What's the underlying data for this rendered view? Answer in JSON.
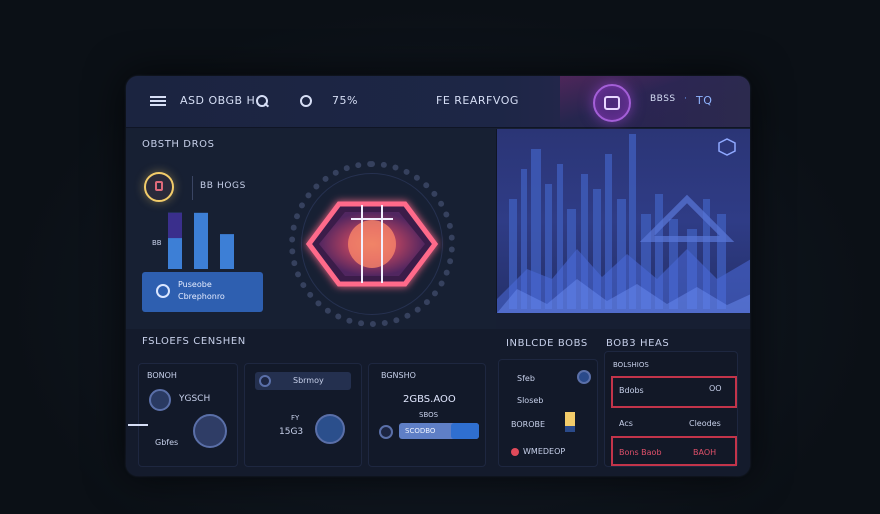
{
  "titlebar": {
    "left_text": "ASD OBGB H",
    "count_text": "75%",
    "center_title": "FE REARFVOG",
    "right_text": "BBSS",
    "right_link": "TQ"
  },
  "left_panel": {
    "heading": "OBSTH DROS",
    "stat_label": "BB HOGS",
    "axis_tick": "BB",
    "card_line1": "Puseobe",
    "card_line2": "Cbrephonro"
  },
  "chart_data": {
    "type": "bar",
    "categories": [
      "",
      "",
      ""
    ],
    "values": [
      58,
      58,
      36
    ],
    "title": "",
    "xlabel": "",
    "ylabel": ""
  },
  "lower_left": {
    "heading": "FSLOEFS CENSHEN",
    "card_title": "BONOH",
    "search_label": "YGSCH",
    "small_label": "Gbfes",
    "sort_label": "Sbrmoy",
    "tiny_label": "FY",
    "count_value": "15G3"
  },
  "lower_mid": {
    "card_title": "BGNSHO",
    "amount": "2GBS.AOO",
    "sub_label": "SBOS",
    "button_text": "SCODBO"
  },
  "lower_right": {
    "heading_left": "INBLCDE BOBS",
    "heading_right": "BOB3 HEAS",
    "list": [
      {
        "label": "Sfeb"
      },
      {
        "label": "Sloseb"
      },
      {
        "label": "BOROBE"
      },
      {
        "label": "WMEDEOP"
      }
    ],
    "table_title": "BOLSHIOS",
    "rows": [
      {
        "left": "Bdobs",
        "right": "OO"
      },
      {
        "left": "Acs",
        "right": "Cleodes"
      },
      {
        "left": "Bons  Baob",
        "right": "BAOH"
      }
    ]
  },
  "colors": {
    "accent_blue": "#3d7fd6",
    "accent_red": "#c2344a",
    "hex_glow": "#ff5a78",
    "badge_gold": "#f2cc6a"
  }
}
